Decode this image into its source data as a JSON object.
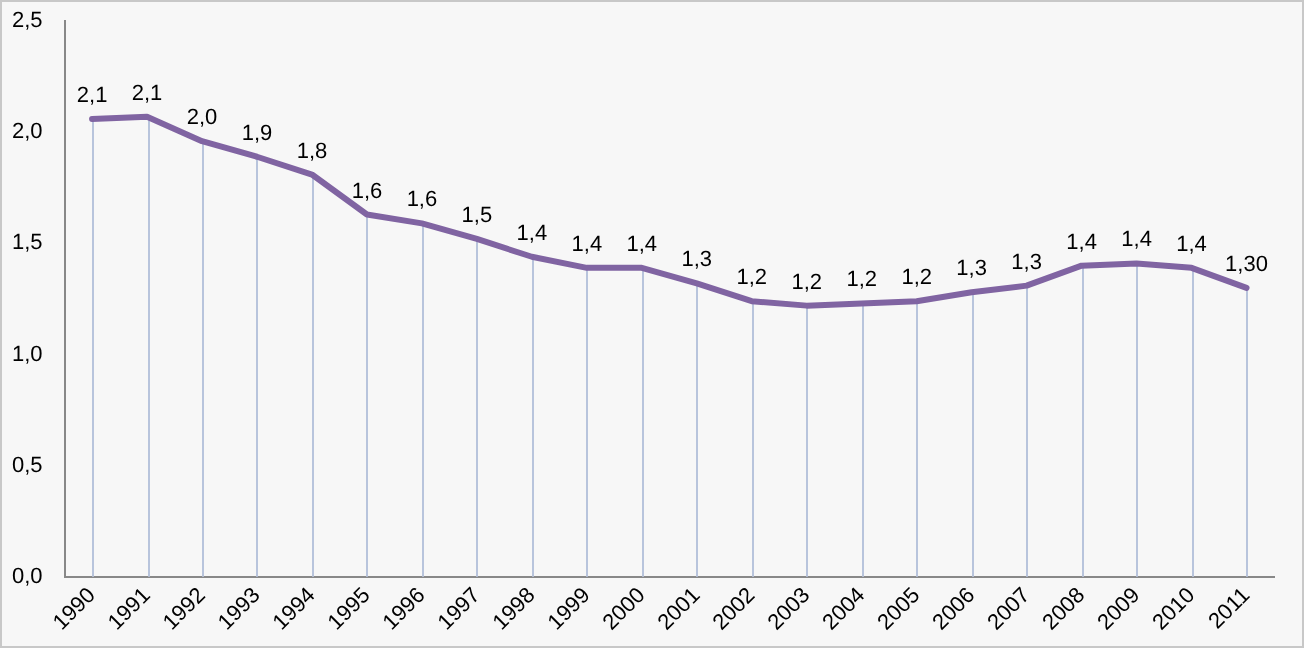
{
  "chart_data": {
    "type": "line",
    "categories": [
      "1990",
      "1991",
      "1992",
      "1993",
      "1994",
      "1995",
      "1996",
      "1997",
      "1998",
      "1999",
      "2000",
      "2001",
      "2002",
      "2003",
      "2004",
      "2005",
      "2006",
      "2007",
      "2008",
      "2009",
      "2010",
      "2011"
    ],
    "series": [
      {
        "color": "#8064a2",
        "values": [
          2.06,
          2.07,
          1.96,
          1.89,
          1.81,
          1.63,
          1.59,
          1.52,
          1.44,
          1.39,
          1.39,
          1.32,
          1.24,
          1.22,
          1.23,
          1.24,
          1.28,
          1.31,
          1.4,
          1.41,
          1.39,
          1.3
        ],
        "value_labels": [
          "2,1",
          "2,1",
          "2,0",
          "1,9",
          "1,8",
          "1,6",
          "1,6",
          "1,5",
          "1,4",
          "1,4",
          "1,4",
          "1,3",
          "1,2",
          "1,2",
          "1,2",
          "1,2",
          "1,3",
          "1,3",
          "1,4",
          "1,4",
          "1,4",
          "1,30"
        ]
      }
    ],
    "ylim": [
      0,
      2.5
    ],
    "yticks": [
      {
        "value": 0,
        "label": "0,0"
      },
      {
        "value": 0.5,
        "label": "0,5"
      },
      {
        "value": 1,
        "label": "1,0"
      },
      {
        "value": 1.5,
        "label": "1,5"
      },
      {
        "value": 2,
        "label": "2,0"
      },
      {
        "value": 2.5,
        "label": "2,5"
      }
    ],
    "grid": false,
    "legend": false,
    "marker": "none",
    "line_style": "solid"
  }
}
